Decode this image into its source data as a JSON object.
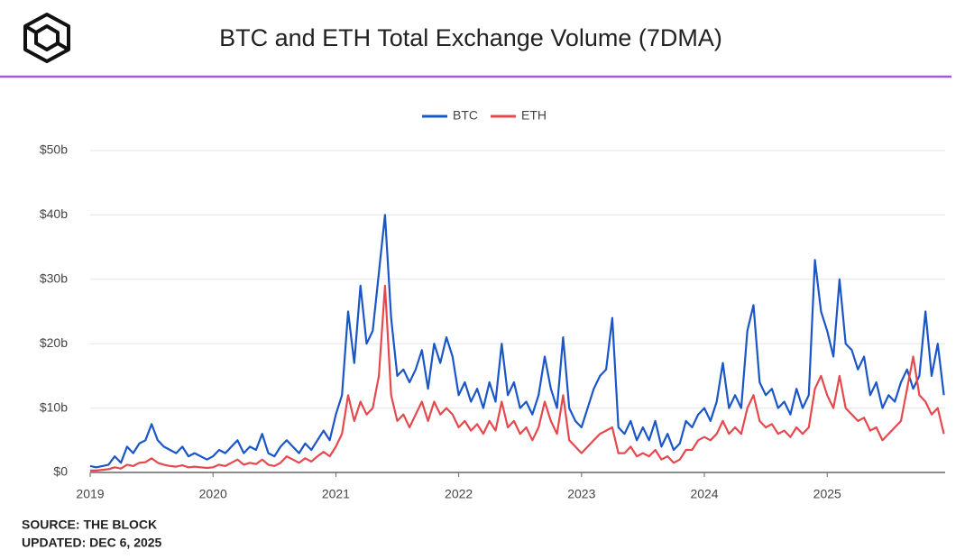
{
  "chart_data": {
    "type": "line",
    "title": "BTC and ETH Total Exchange Volume (7DMA)",
    "source": "SOURCE: THE BLOCK",
    "updated": "UPDATED: DEC 6, 2025",
    "x": [
      2019.0,
      2019.05,
      2019.1,
      2019.15,
      2019.2,
      2019.25,
      2019.3,
      2019.35,
      2019.4,
      2019.45,
      2019.5,
      2019.55,
      2019.6,
      2019.65,
      2019.7,
      2019.75,
      2019.8,
      2019.85,
      2019.9,
      2019.95,
      2020.0,
      2020.05,
      2020.1,
      2020.15,
      2020.2,
      2020.25,
      2020.3,
      2020.35,
      2020.4,
      2020.45,
      2020.5,
      2020.55,
      2020.6,
      2020.65,
      2020.7,
      2020.75,
      2020.8,
      2020.85,
      2020.9,
      2020.95,
      2021.0,
      2021.05,
      2021.1,
      2021.15,
      2021.2,
      2021.25,
      2021.3,
      2021.35,
      2021.4,
      2021.45,
      2021.5,
      2021.55,
      2021.6,
      2021.65,
      2021.7,
      2021.75,
      2021.8,
      2021.85,
      2021.9,
      2021.95,
      2022.0,
      2022.05,
      2022.1,
      2022.15,
      2022.2,
      2022.25,
      2022.3,
      2022.35,
      2022.4,
      2022.45,
      2022.5,
      2022.55,
      2022.6,
      2022.65,
      2022.7,
      2022.75,
      2022.8,
      2022.85,
      2022.9,
      2022.95,
      2023.0,
      2023.05,
      2023.1,
      2023.15,
      2023.2,
      2023.25,
      2023.3,
      2023.35,
      2023.4,
      2023.45,
      2023.5,
      2023.55,
      2023.6,
      2023.65,
      2023.7,
      2023.75,
      2023.8,
      2023.85,
      2023.9,
      2023.95,
      2024.0,
      2024.05,
      2024.1,
      2024.15,
      2024.2,
      2024.25,
      2024.3,
      2024.35,
      2024.4,
      2024.45,
      2024.5,
      2024.55,
      2024.6,
      2024.65,
      2024.7,
      2024.75,
      2024.8,
      2024.85,
      2024.9,
      2024.95,
      2025.0,
      2025.05,
      2025.1,
      2025.15,
      2025.2,
      2025.25,
      2025.3,
      2025.35,
      2025.4,
      2025.45,
      2025.5,
      2025.55,
      2025.6,
      2025.65,
      2025.7,
      2025.75,
      2025.8,
      2025.85,
      2025.9,
      2025.95
    ],
    "series": [
      {
        "name": "BTC",
        "color": "#1a56c7",
        "values": [
          1,
          0.8,
          1,
          1.2,
          2.5,
          1.5,
          4,
          3,
          4.5,
          5,
          7.5,
          5,
          4,
          3.5,
          3,
          4,
          2.5,
          3,
          2.5,
          2,
          2.5,
          3.5,
          3,
          4,
          5,
          3,
          4,
          3.5,
          6,
          3,
          2.5,
          4,
          5,
          4,
          3,
          4.5,
          3.5,
          5,
          6.5,
          5,
          9,
          12,
          25,
          17,
          29,
          20,
          22,
          31,
          40,
          24,
          15,
          16,
          14,
          16,
          19,
          13,
          20,
          17,
          21,
          18,
          12,
          14,
          11,
          13,
          10,
          14,
          11,
          20,
          12,
          14,
          10,
          11,
          9,
          12,
          18,
          13,
          10,
          21,
          10,
          8,
          7,
          10,
          13,
          15,
          16,
          24,
          7,
          6,
          8,
          5,
          7,
          5,
          8,
          4,
          6,
          3.5,
          4.5,
          8,
          7,
          9,
          10,
          8,
          11,
          17,
          10,
          12,
          10,
          22,
          26,
          14,
          12,
          13,
          10,
          11,
          9,
          13,
          10,
          12,
          33,
          25,
          22,
          18,
          30,
          20,
          19,
          16,
          18,
          12,
          14,
          10,
          12,
          11,
          14,
          16,
          13,
          15,
          25,
          15,
          20,
          12
        ]
      },
      {
        "name": "ETH",
        "color": "#e5484d",
        "values": [
          0.3,
          0.3,
          0.4,
          0.5,
          0.8,
          0.6,
          1.2,
          1,
          1.5,
          1.6,
          2.2,
          1.5,
          1.2,
          1,
          0.9,
          1.1,
          0.8,
          0.9,
          0.8,
          0.7,
          0.8,
          1.2,
          1,
          1.5,
          2,
          1.2,
          1.5,
          1.3,
          2,
          1.2,
          1,
          1.5,
          2.5,
          2,
          1.5,
          2.2,
          1.7,
          2.5,
          3.2,
          2.5,
          4,
          6,
          12,
          8,
          11,
          9,
          10,
          15,
          29,
          12,
          8,
          9,
          7,
          9,
          11,
          8,
          11,
          9,
          10,
          9,
          7,
          8,
          6.5,
          7.5,
          6,
          8,
          6.5,
          11,
          7,
          8,
          6,
          7,
          5,
          7,
          11,
          8,
          6,
          12,
          5,
          4,
          3,
          4,
          5,
          6,
          6.5,
          7,
          3,
          3,
          4,
          2.5,
          3,
          2.5,
          3.5,
          2,
          2.5,
          1.5,
          2,
          3.5,
          3.5,
          5,
          5.5,
          5,
          6,
          8,
          6,
          7,
          6,
          10,
          12,
          8,
          7,
          7.5,
          6,
          6.5,
          5.5,
          7,
          6,
          7,
          13,
          15,
          12,
          10,
          15,
          10,
          9,
          8,
          8.5,
          6.5,
          7,
          5,
          6,
          7,
          8,
          13,
          18,
          12,
          11,
          9,
          10,
          6
        ]
      }
    ],
    "xlim": [
      2019,
      2025.96
    ],
    "xticks": [
      2019,
      2020,
      2021,
      2022,
      2023,
      2024,
      2025
    ],
    "ylim": [
      0,
      50
    ],
    "yticks": [
      {
        "value": 0,
        "label": "$0"
      },
      {
        "value": 10,
        "label": "$10b"
      },
      {
        "value": 20,
        "label": "$20b"
      },
      {
        "value": 30,
        "label": "$30b"
      },
      {
        "value": 40,
        "label": "$40b"
      },
      {
        "value": 50,
        "label": "$50b"
      }
    ],
    "grid": true,
    "legend": "top"
  }
}
